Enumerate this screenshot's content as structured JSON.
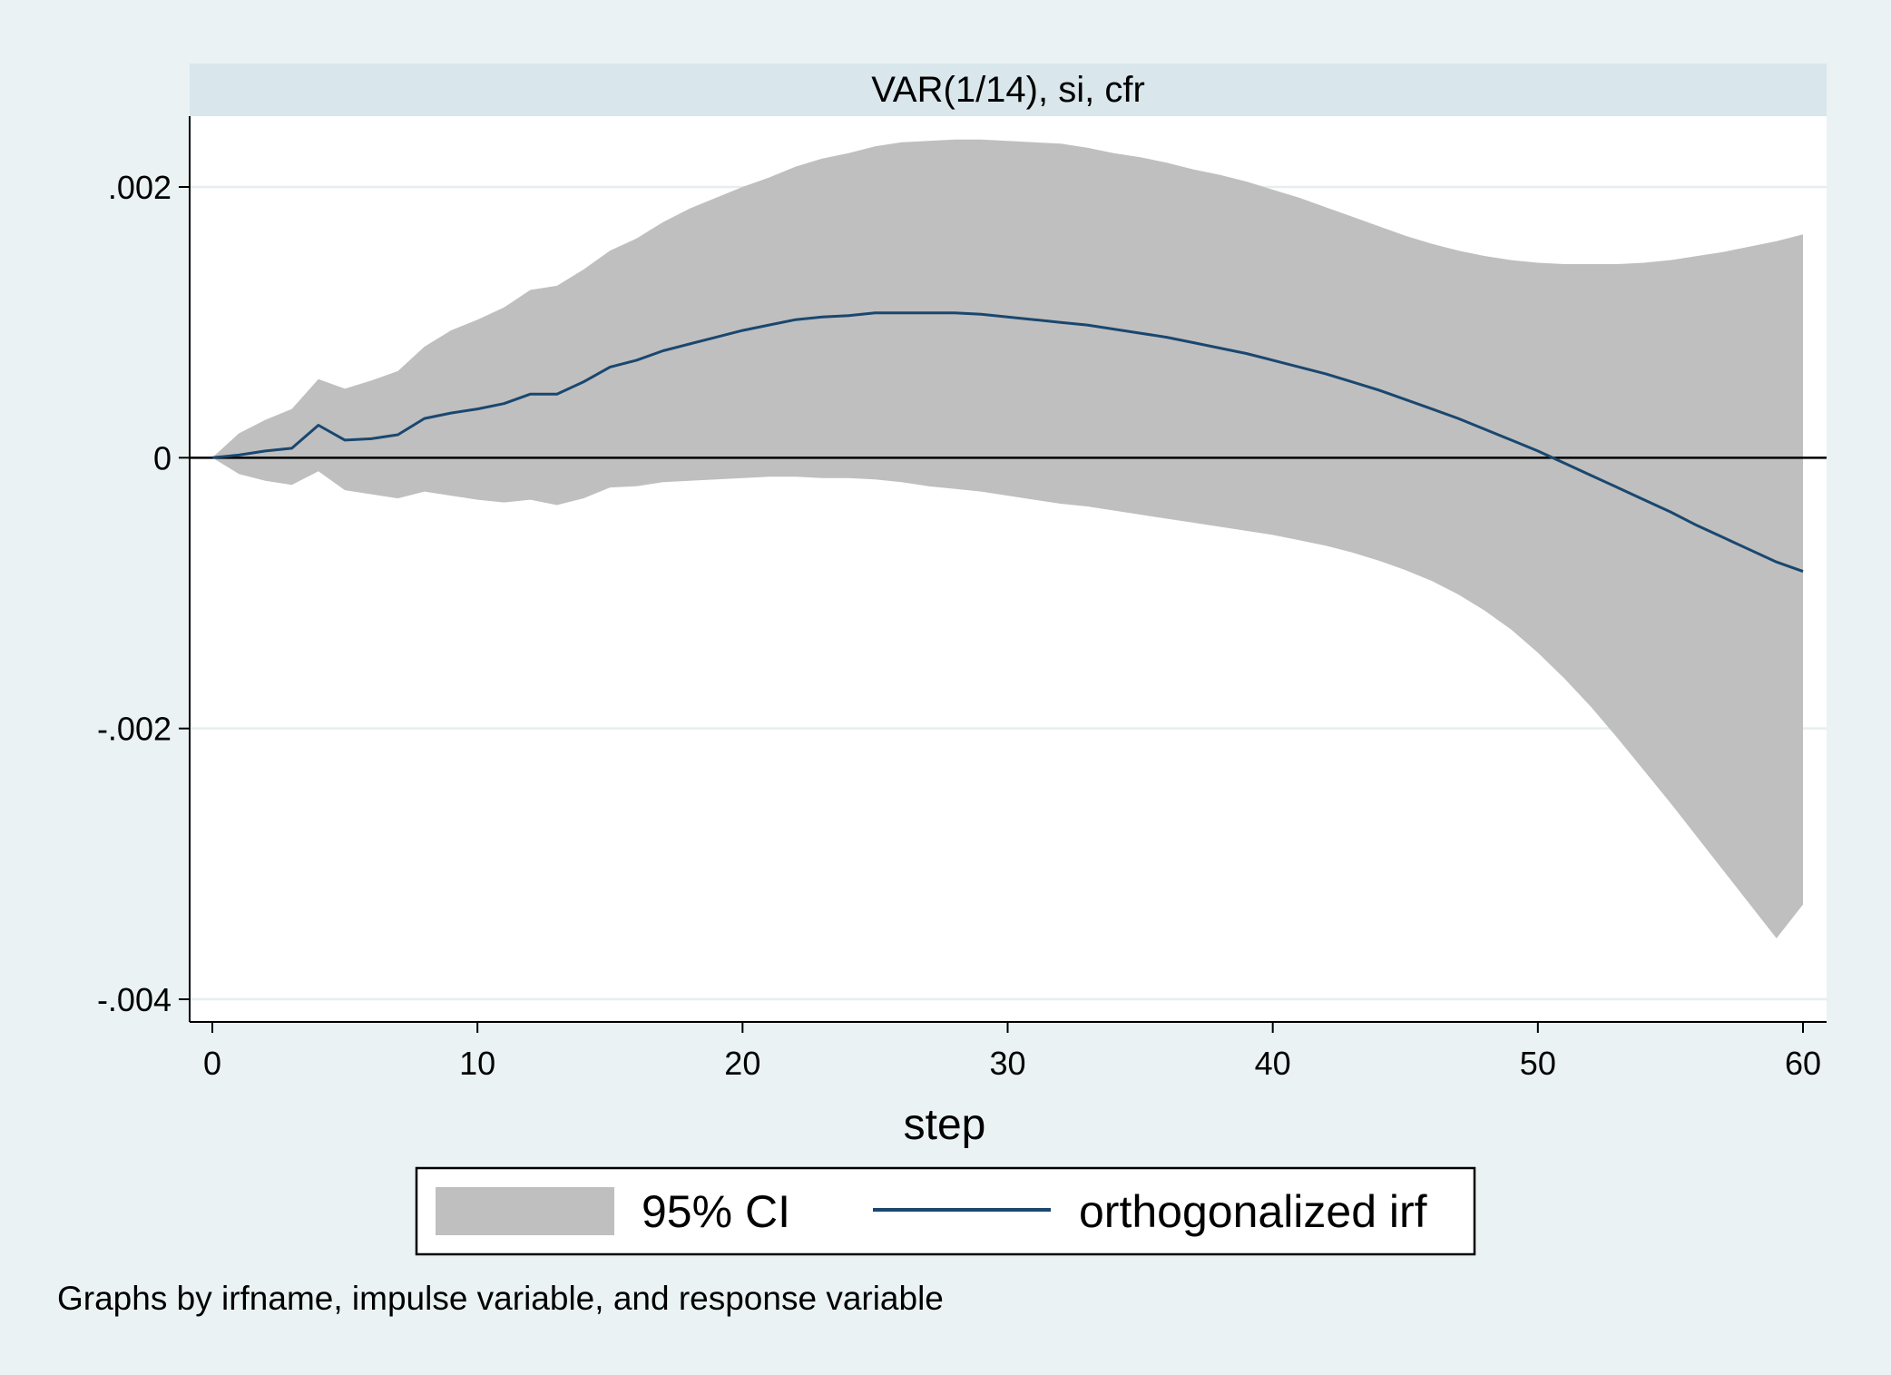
{
  "chart_data": {
    "type": "area",
    "panel_title": "VAR(1/14), si, cfr",
    "xlabel": "step",
    "ylabel": "",
    "xlim": [
      0,
      60
    ],
    "ylim": [
      -0.004,
      0.0025
    ],
    "x_ticks": [
      0,
      10,
      20,
      30,
      40,
      50,
      60
    ],
    "x_tick_labels": [
      "0",
      "10",
      "20",
      "30",
      "40",
      "50",
      "60"
    ],
    "y_ticks": [
      0.002,
      0,
      -0.002,
      -0.004
    ],
    "y_tick_labels": [
      ".002",
      "0",
      "-.002",
      "-.004"
    ],
    "grid": true,
    "legend_position": "bottom",
    "note": "Graphs by irfname, impulse variable, and response variable",
    "colors": {
      "ci_band": "#bfbfbf",
      "irf_line": "#1a476f",
      "background": "#eaf2f3",
      "title_band": "#d9e6eb"
    },
    "series": [
      {
        "name": "orthogonalized irf",
        "kind": "line",
        "x": [
          0,
          1,
          2,
          3,
          4,
          5,
          6,
          7,
          8,
          9,
          10,
          11,
          12,
          13,
          14,
          15,
          16,
          17,
          18,
          19,
          20,
          21,
          22,
          23,
          24,
          25,
          26,
          27,
          28,
          29,
          30,
          31,
          32,
          33,
          34,
          35,
          36,
          37,
          38,
          39,
          40,
          41,
          42,
          43,
          44,
          45,
          46,
          47,
          48,
          49,
          50,
          51,
          52,
          53,
          54,
          55,
          56,
          57,
          58,
          59,
          60
        ],
        "y": [
          0,
          2e-05,
          5e-05,
          7e-05,
          0.00024,
          0.00013,
          0.00014,
          0.00017,
          0.00029,
          0.00033,
          0.00036,
          0.0004,
          0.00047,
          0.00047,
          0.00056,
          0.00067,
          0.00072,
          0.00079,
          0.00084,
          0.00089,
          0.00094,
          0.00098,
          0.00102,
          0.00104,
          0.00105,
          0.00107,
          0.00107,
          0.00107,
          0.00107,
          0.00106,
          0.00104,
          0.00102,
          0.001,
          0.00098,
          0.00095,
          0.00092,
          0.00089,
          0.00085,
          0.00081,
          0.00077,
          0.00072,
          0.00067,
          0.00062,
          0.00056,
          0.0005,
          0.00043,
          0.00036,
          0.00029,
          0.00021,
          0.00013,
          5e-05,
          -4e-05,
          -0.00013,
          -0.00022,
          -0.00031,
          -0.0004,
          -0.0005,
          -0.00059,
          -0.00068,
          -0.00077,
          -0.00084
        ]
      },
      {
        "name": "95% CI",
        "kind": "band",
        "x": [
          0,
          1,
          2,
          3,
          4,
          5,
          6,
          7,
          8,
          9,
          10,
          11,
          12,
          13,
          14,
          15,
          16,
          17,
          18,
          19,
          20,
          21,
          22,
          23,
          24,
          25,
          26,
          27,
          28,
          29,
          30,
          31,
          32,
          33,
          34,
          35,
          36,
          37,
          38,
          39,
          40,
          41,
          42,
          43,
          44,
          45,
          46,
          47,
          48,
          49,
          50,
          51,
          52,
          53,
          54,
          55,
          56,
          57,
          58,
          59,
          60
        ],
        "upper": [
          0,
          0.00018,
          0.00028,
          0.00036,
          0.00058,
          0.00051,
          0.00057,
          0.00064,
          0.00082,
          0.00094,
          0.00102,
          0.00111,
          0.00124,
          0.00127,
          0.00139,
          0.00153,
          0.00162,
          0.00174,
          0.00184,
          0.00192,
          0.002,
          0.00207,
          0.00215,
          0.00221,
          0.00225,
          0.0023,
          0.00233,
          0.00234,
          0.00235,
          0.00235,
          0.00234,
          0.00233,
          0.00232,
          0.00229,
          0.00225,
          0.00222,
          0.00218,
          0.00213,
          0.00209,
          0.00204,
          0.00198,
          0.00192,
          0.00185,
          0.00178,
          0.00171,
          0.00164,
          0.00158,
          0.00153,
          0.00149,
          0.00146,
          0.00144,
          0.00143,
          0.00143,
          0.00143,
          0.00144,
          0.00146,
          0.00149,
          0.00152,
          0.00156,
          0.0016,
          0.00165
        ],
        "lower": [
          0,
          -0.00012,
          -0.00017,
          -0.0002,
          -0.0001,
          -0.00024,
          -0.00027,
          -0.0003,
          -0.00025,
          -0.00028,
          -0.00031,
          -0.00033,
          -0.00031,
          -0.00035,
          -0.0003,
          -0.00022,
          -0.00021,
          -0.00018,
          -0.00017,
          -0.00016,
          -0.00015,
          -0.00014,
          -0.00014,
          -0.00015,
          -0.00015,
          -0.00016,
          -0.00018,
          -0.00021,
          -0.00023,
          -0.00025,
          -0.00028,
          -0.00031,
          -0.00034,
          -0.00036,
          -0.00039,
          -0.00042,
          -0.00045,
          -0.00048,
          -0.00051,
          -0.00054,
          -0.00057,
          -0.00061,
          -0.00065,
          -0.0007,
          -0.00076,
          -0.00083,
          -0.00091,
          -0.00101,
          -0.00113,
          -0.00127,
          -0.00144,
          -0.00163,
          -0.00184,
          -0.00207,
          -0.00231,
          -0.00255,
          -0.0028,
          -0.00305,
          -0.0033,
          -0.00355,
          -0.0033
        ]
      }
    ]
  }
}
